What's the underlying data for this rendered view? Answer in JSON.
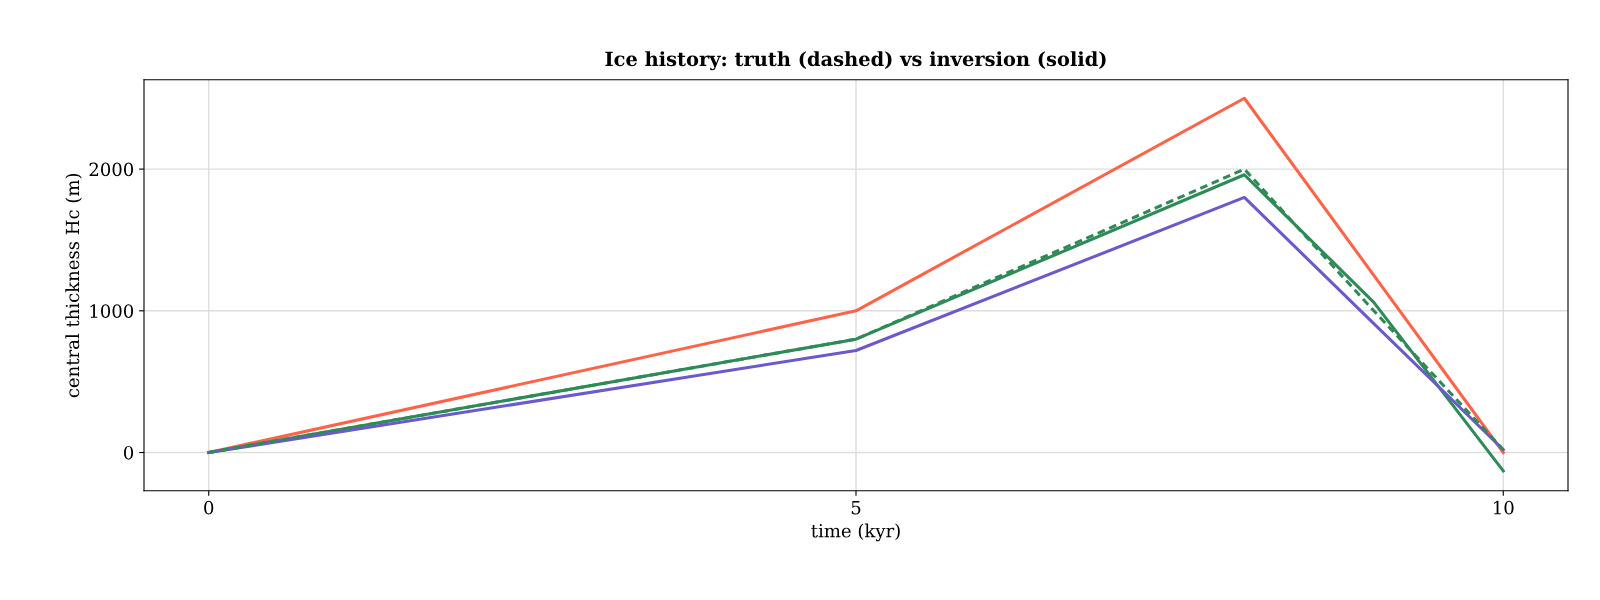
{
  "chart_data": {
    "type": "line",
    "title": "Ice history: truth (dashed) vs inversion (solid)",
    "xlabel": "time (kyr)",
    "ylabel": "central thickness Hc (m)",
    "xlim": [
      -0.5,
      10.5
    ],
    "xticks": [
      0,
      5,
      10
    ],
    "ylim": [
      -270,
      2630
    ],
    "yticks": [
      0,
      1000,
      2000
    ],
    "grid": true,
    "marker": "none",
    "x": [
      0,
      5,
      8,
      9,
      10
    ],
    "series": [
      {
        "color": "#ff6347",
        "line_style": "solid",
        "values": [
          0,
          1000,
          2500,
          1250,
          0
        ]
      },
      {
        "color": "#2e8b57",
        "line_style": "dashed",
        "values": [
          0,
          800,
          2000,
          1000,
          20
        ]
      },
      {
        "color": "#2e8b57",
        "line_style": "solid",
        "values": [
          0,
          800,
          1960,
          1060,
          -130
        ]
      },
      {
        "color": "#6a5acd",
        "line_style": "solid",
        "values": [
          0,
          720,
          1800,
          910,
          20
        ]
      }
    ]
  }
}
